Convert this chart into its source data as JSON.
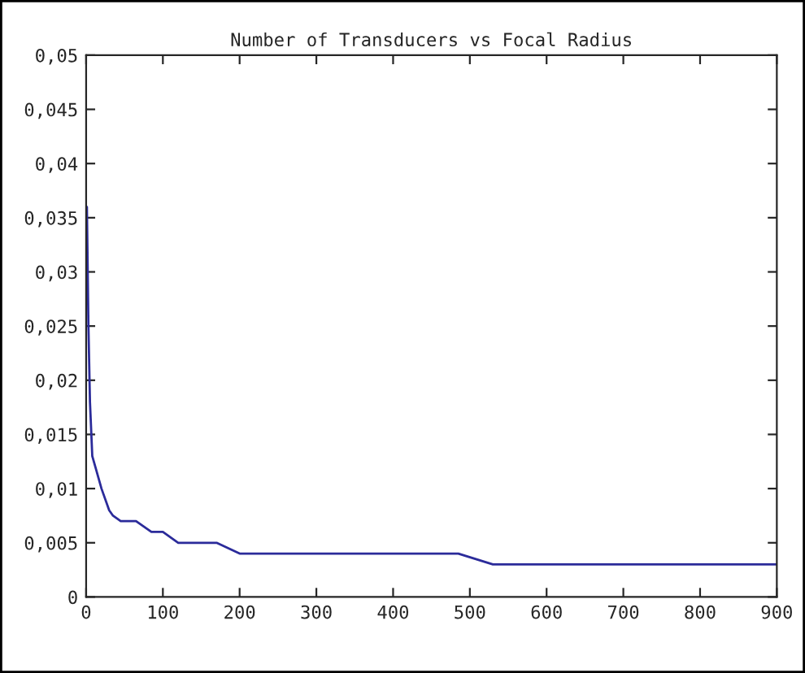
{
  "chart_data": {
    "type": "line",
    "title": "Number of Transducers vs Focal Radius",
    "x": [
      1,
      3,
      5,
      8,
      12,
      20,
      30,
      35,
      45,
      65,
      85,
      100,
      120,
      170,
      200,
      485,
      530,
      900
    ],
    "series": [
      {
        "color": "#2b2b9a",
        "values": [
          0.036,
          0.025,
          0.018,
          0.013,
          0.012,
          0.01,
          0.008,
          0.0075,
          0.007,
          0.007,
          0.006,
          0.006,
          0.005,
          0.005,
          0.004,
          0.004,
          0.003,
          0.003
        ]
      }
    ],
    "xlim": [
      0,
      900
    ],
    "xticks": [
      0,
      100,
      200,
      300,
      400,
      500,
      600,
      700,
      800,
      900
    ],
    "ylim": [
      0,
      0.05
    ],
    "yticks": [
      {
        "value": 0,
        "label": "0"
      },
      {
        "value": 0.005,
        "label": "0,005"
      },
      {
        "value": 0.01,
        "label": "0,01"
      },
      {
        "value": 0.015,
        "label": "0,015"
      },
      {
        "value": 0.02,
        "label": "0,02"
      },
      {
        "value": 0.025,
        "label": "0,025"
      },
      {
        "value": 0.03,
        "label": "0,03"
      },
      {
        "value": 0.035,
        "label": "0,035"
      },
      {
        "value": 0.04,
        "label": "0,04"
      },
      {
        "value": 0.045,
        "label": "0,045"
      },
      {
        "value": 0.05,
        "label": "0,05"
      }
    ],
    "grid": false,
    "legend": false
  }
}
